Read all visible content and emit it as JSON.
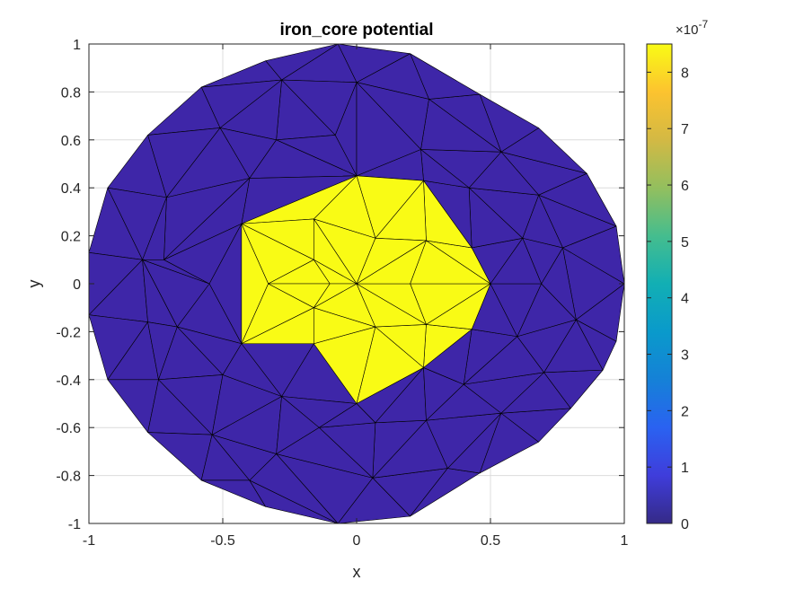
{
  "chart_data": {
    "type": "heatmap",
    "title": "iron_core potential",
    "xlabel": "x",
    "ylabel": "y",
    "xlim": [
      -1,
      1
    ],
    "ylim": [
      -1,
      1
    ],
    "grid": true,
    "x_ticks": [
      "-1",
      "-0.5",
      "0",
      "0.5",
      "1"
    ],
    "y_ticks": [
      "-1",
      "-0.8",
      "-0.6",
      "-0.4",
      "-0.2",
      "0",
      "0.2",
      "0.4",
      "0.6",
      "0.8",
      "1"
    ],
    "colorbar": {
      "colormap": "parula",
      "range": [
        0,
        8.5
      ],
      "ticks": [
        "0",
        "1",
        "2",
        "3",
        "4",
        "5",
        "6",
        "7",
        "8"
      ],
      "exponent_base": "×10",
      "exponent_power": "-7"
    },
    "colors": {
      "low": "#3e26a8",
      "high": "#f9fb15",
      "edge": "#000000"
    },
    "domain": {
      "shape": "disk",
      "radius": 1,
      "inner_region": "star",
      "inner_value": 8.5,
      "outer_value": 0
    },
    "nodes": [
      [
        -0.07,
        -1.0
      ],
      [
        0.2,
        -0.97
      ],
      [
        0.46,
        -0.79
      ],
      [
        0.68,
        -0.66
      ],
      [
        0.8,
        -0.52
      ],
      [
        0.92,
        -0.36
      ],
      [
        0.97,
        -0.24
      ],
      [
        1.0,
        0.0
      ],
      [
        0.97,
        0.24
      ],
      [
        0.86,
        0.46
      ],
      [
        0.68,
        0.65
      ],
      [
        0.46,
        0.79
      ],
      [
        0.2,
        0.96
      ],
      [
        -0.07,
        1.0
      ],
      [
        -0.34,
        0.93
      ],
      [
        -0.58,
        0.82
      ],
      [
        -0.78,
        0.62
      ],
      [
        -0.93,
        0.4
      ],
      [
        -1.0,
        0.13
      ],
      [
        -1.0,
        -0.13
      ],
      [
        -0.93,
        -0.4
      ],
      [
        -0.78,
        -0.62
      ],
      [
        -0.58,
        -0.82
      ],
      [
        -0.34,
        -0.93
      ],
      [
        0.06,
        -0.81
      ],
      [
        0.34,
        -0.77
      ],
      [
        0.54,
        -0.54
      ],
      [
        0.7,
        -0.37
      ],
      [
        0.82,
        -0.15
      ],
      [
        0.77,
        0.15
      ],
      [
        0.68,
        0.37
      ],
      [
        0.54,
        0.55
      ],
      [
        0.27,
        0.77
      ],
      [
        0.0,
        0.84
      ],
      [
        -0.28,
        0.85
      ],
      [
        -0.51,
        0.65
      ],
      [
        -0.71,
        0.36
      ],
      [
        -0.8,
        0.1
      ],
      [
        -0.78,
        -0.16
      ],
      [
        -0.74,
        -0.4
      ],
      [
        -0.54,
        -0.63
      ],
      [
        -0.3,
        -0.71
      ],
      [
        -0.4,
        -0.82
      ],
      [
        0.07,
        -0.58
      ],
      [
        0.26,
        -0.57
      ],
      [
        0.4,
        -0.42
      ],
      [
        0.6,
        -0.22
      ],
      [
        0.69,
        0.0
      ],
      [
        0.62,
        0.19
      ],
      [
        0.42,
        0.4
      ],
      [
        0.24,
        0.56
      ],
      [
        0.0,
        0.45
      ],
      [
        -0.08,
        0.62
      ],
      [
        -0.3,
        0.6
      ],
      [
        -0.4,
        0.44
      ],
      [
        -0.72,
        0.1
      ],
      [
        -0.55,
        0.0
      ],
      [
        -0.67,
        -0.18
      ],
      [
        -0.5,
        -0.38
      ],
      [
        -0.28,
        -0.47
      ],
      [
        -0.14,
        -0.6
      ],
      [
        0.0,
        -0.5
      ],
      [
        0.25,
        -0.35
      ],
      [
        0.5,
        0.0
      ],
      [
        0.25,
        0.43
      ],
      [
        -0.43,
        0.25
      ],
      [
        -0.43,
        -0.25
      ],
      [
        0.43,
        -0.19
      ],
      [
        0.43,
        0.15
      ],
      [
        -0.16,
        -0.25
      ],
      [
        0.07,
        -0.18
      ],
      [
        0.26,
        -0.17
      ],
      [
        0.2,
        0.0
      ],
      [
        0.26,
        0.18
      ],
      [
        0.07,
        0.19
      ],
      [
        0.0,
        0.0
      ],
      [
        -0.16,
        0.27
      ],
      [
        -0.16,
        0.1
      ],
      [
        -0.16,
        -0.1
      ],
      [
        -0.33,
        0.0
      ],
      [
        -0.1,
        0.0
      ]
    ],
    "triangles": [
      [
        0,
        1,
        24
      ],
      [
        1,
        25,
        24
      ],
      [
        1,
        2,
        25
      ],
      [
        2,
        26,
        25
      ],
      [
        2,
        3,
        26
      ],
      [
        3,
        4,
        26
      ],
      [
        4,
        27,
        26
      ],
      [
        4,
        5,
        27
      ],
      [
        5,
        28,
        27
      ],
      [
        5,
        6,
        28
      ],
      [
        6,
        7,
        28
      ],
      [
        7,
        29,
        28
      ],
      [
        7,
        8,
        29
      ],
      [
        8,
        30,
        29
      ],
      [
        8,
        9,
        30
      ],
      [
        9,
        31,
        30
      ],
      [
        9,
        10,
        31
      ],
      [
        10,
        11,
        31
      ],
      [
        11,
        32,
        31
      ],
      [
        11,
        12,
        32
      ],
      [
        12,
        33,
        32
      ],
      [
        12,
        13,
        33
      ],
      [
        13,
        34,
        33
      ],
      [
        13,
        14,
        34
      ],
      [
        14,
        15,
        34
      ],
      [
        15,
        35,
        34
      ],
      [
        15,
        16,
        35
      ],
      [
        16,
        36,
        35
      ],
      [
        16,
        17,
        36
      ],
      [
        17,
        18,
        37
      ],
      [
        17,
        37,
        36
      ],
      [
        18,
        19,
        37
      ],
      [
        19,
        38,
        37
      ],
      [
        19,
        20,
        38
      ],
      [
        20,
        39,
        38
      ],
      [
        20,
        21,
        39
      ],
      [
        21,
        40,
        39
      ],
      [
        21,
        22,
        40
      ],
      [
        22,
        42,
        40
      ],
      [
        22,
        23,
        42
      ],
      [
        23,
        0,
        42
      ],
      [
        0,
        24,
        41
      ],
      [
        0,
        41,
        42
      ],
      [
        42,
        41,
        40
      ],
      [
        24,
        25,
        44
      ],
      [
        24,
        44,
        43
      ],
      [
        25,
        26,
        44
      ],
      [
        26,
        45,
        44
      ],
      [
        26,
        27,
        45
      ],
      [
        27,
        46,
        45
      ],
      [
        27,
        28,
        46
      ],
      [
        28,
        47,
        46
      ],
      [
        28,
        29,
        47
      ],
      [
        29,
        48,
        47
      ],
      [
        29,
        30,
        48
      ],
      [
        30,
        49,
        48
      ],
      [
        30,
        31,
        49
      ],
      [
        31,
        50,
        49
      ],
      [
        31,
        32,
        50
      ],
      [
        32,
        33,
        50
      ],
      [
        33,
        52,
        51
      ],
      [
        33,
        51,
        50
      ],
      [
        33,
        34,
        52
      ],
      [
        34,
        53,
        52
      ],
      [
        34,
        35,
        53
      ],
      [
        35,
        54,
        53
      ],
      [
        35,
        36,
        54
      ],
      [
        36,
        55,
        54
      ],
      [
        36,
        37,
        55
      ],
      [
        37,
        38,
        57
      ],
      [
        37,
        57,
        56
      ],
      [
        37,
        56,
        55
      ],
      [
        38,
        39,
        57
      ],
      [
        39,
        58,
        57
      ],
      [
        39,
        40,
        58
      ],
      [
        40,
        41,
        59
      ],
      [
        40,
        59,
        58
      ],
      [
        41,
        60,
        59
      ],
      [
        41,
        24,
        60
      ],
      [
        24,
        43,
        60
      ],
      [
        43,
        44,
        62
      ],
      [
        43,
        62,
        61
      ],
      [
        44,
        45,
        62
      ],
      [
        45,
        46,
        67
      ],
      [
        45,
        67,
        62
      ],
      [
        46,
        63,
        67
      ],
      [
        46,
        47,
        63
      ],
      [
        47,
        48,
        63
      ],
      [
        48,
        68,
        63
      ],
      [
        48,
        49,
        68
      ],
      [
        49,
        64,
        68
      ],
      [
        49,
        50,
        64
      ],
      [
        50,
        51,
        64
      ],
      [
        51,
        52,
        53
      ],
      [
        51,
        53,
        54
      ],
      [
        51,
        54,
        65
      ],
      [
        54,
        55,
        65
      ],
      [
        55,
        56,
        65
      ],
      [
        56,
        57,
        66
      ],
      [
        56,
        66,
        65
      ],
      [
        57,
        58,
        66
      ],
      [
        58,
        59,
        66
      ],
      [
        59,
        61,
        69
      ],
      [
        59,
        69,
        66
      ],
      [
        59,
        60,
        61
      ],
      [
        60,
        43,
        61
      ],
      [
        61,
        62,
        70
      ],
      [
        61,
        70,
        69
      ],
      [
        62,
        67,
        71
      ],
      [
        62,
        71,
        70
      ],
      [
        67,
        63,
        71
      ],
      [
        63,
        72,
        71
      ],
      [
        63,
        73,
        72
      ],
      [
        63,
        68,
        73
      ],
      [
        68,
        64,
        73
      ],
      [
        64,
        74,
        73
      ],
      [
        64,
        51,
        74
      ],
      [
        51,
        76,
        74
      ],
      [
        51,
        65,
        76
      ],
      [
        65,
        77,
        76
      ],
      [
        65,
        79,
        77
      ],
      [
        65,
        66,
        79
      ],
      [
        66,
        78,
        79
      ],
      [
        66,
        69,
        78
      ],
      [
        69,
        70,
        78
      ],
      [
        70,
        75,
        78
      ],
      [
        70,
        71,
        75
      ],
      [
        71,
        72,
        75
      ],
      [
        72,
        73,
        75
      ],
      [
        73,
        74,
        75
      ],
      [
        74,
        76,
        75
      ],
      [
        76,
        77,
        75
      ],
      [
        77,
        80,
        75
      ],
      [
        77,
        79,
        80
      ],
      [
        79,
        78,
        80
      ],
      [
        78,
        75,
        80
      ]
    ],
    "high_triangles": [
      [
        61,
        62,
        70
      ],
      [
        61,
        70,
        69
      ],
      [
        62,
        67,
        71
      ],
      [
        62,
        71,
        70
      ],
      [
        67,
        63,
        71
      ],
      [
        63,
        72,
        71
      ],
      [
        63,
        73,
        72
      ],
      [
        63,
        68,
        73
      ],
      [
        68,
        64,
        73
      ],
      [
        64,
        74,
        73
      ],
      [
        64,
        51,
        74
      ],
      [
        51,
        76,
        74
      ],
      [
        51,
        65,
        76
      ],
      [
        65,
        77,
        76
      ],
      [
        65,
        79,
        77
      ],
      [
        65,
        66,
        79
      ],
      [
        66,
        78,
        79
      ],
      [
        66,
        69,
        78
      ],
      [
        69,
        70,
        78
      ],
      [
        70,
        75,
        78
      ],
      [
        70,
        71,
        75
      ],
      [
        71,
        72,
        75
      ],
      [
        72,
        73,
        75
      ],
      [
        73,
        74,
        75
      ],
      [
        74,
        76,
        75
      ],
      [
        76,
        77,
        75
      ],
      [
        77,
        80,
        75
      ],
      [
        77,
        79,
        80
      ],
      [
        79,
        78,
        80
      ],
      [
        78,
        75,
        80
      ]
    ]
  }
}
